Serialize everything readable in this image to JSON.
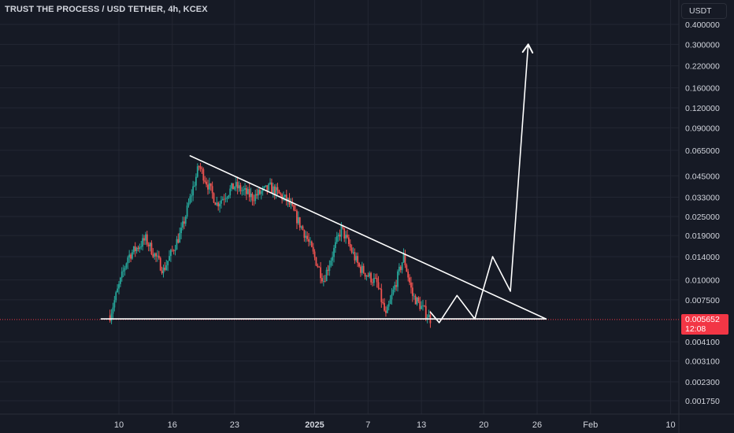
{
  "header": {
    "title": "TRUST THE PROCESS / USD TETHER, 4h, KCEX"
  },
  "toolbar": {
    "currency_label": "USDT"
  },
  "last_price": {
    "value": "0.005652",
    "countdown": "12:08"
  },
  "colors": {
    "background": "#161a25",
    "grid": "#232733",
    "axis_text": "#d1d4dc",
    "up_candle": "#26a69a",
    "down_candle": "#ef5350",
    "drawing": "#ffffff",
    "price_line": "#f23645"
  },
  "chart_data": {
    "type": "candlestick",
    "y_scale": "log",
    "y_ticks": [
      "0.400000",
      "0.300000",
      "0.220000",
      "0.160000",
      "0.120000",
      "0.090000",
      "0.065000",
      "0.045000",
      "0.033000",
      "0.025000",
      "0.019000",
      "0.014000",
      "0.010000",
      "0.007500",
      "0.004100",
      "0.003100",
      "0.002300",
      "0.001750"
    ],
    "x_ticks": [
      {
        "label": "10",
        "date": "2024-12-10"
      },
      {
        "label": "16",
        "date": "2024-12-16"
      },
      {
        "label": "23",
        "date": "2024-12-23"
      },
      {
        "label": "2025",
        "date": "2025-01-01",
        "bold": true
      },
      {
        "label": "7",
        "date": "2025-01-07"
      },
      {
        "label": "13",
        "date": "2025-01-13"
      },
      {
        "label": "20",
        "date": "2025-01-20"
      },
      {
        "label": "26",
        "date": "2025-01-26"
      },
      {
        "label": "Feb",
        "date": "2025-02-01"
      },
      {
        "label": "10",
        "date": "2025-02-10"
      }
    ],
    "price_trend": [
      {
        "date": "2024-12-09",
        "price": 0.006
      },
      {
        "date": "2024-12-11",
        "price": 0.014
      },
      {
        "date": "2024-12-13",
        "price": 0.018
      },
      {
        "date": "2024-12-15",
        "price": 0.0115
      },
      {
        "date": "2024-12-17",
        "price": 0.02
      },
      {
        "date": "2024-12-19",
        "price": 0.052
      },
      {
        "date": "2024-12-21",
        "price": 0.03
      },
      {
        "date": "2024-12-23",
        "price": 0.039
      },
      {
        "date": "2024-12-25",
        "price": 0.033
      },
      {
        "date": "2024-12-27",
        "price": 0.038
      },
      {
        "date": "2024-12-29",
        "price": 0.031
      },
      {
        "date": "2024-12-31",
        "price": 0.019
      },
      {
        "date": "2025-01-02",
        "price": 0.01
      },
      {
        "date": "2025-01-04",
        "price": 0.021
      },
      {
        "date": "2025-01-06",
        "price": 0.012
      },
      {
        "date": "2025-01-08",
        "price": 0.0095
      },
      {
        "date": "2025-01-09",
        "price": 0.0059
      },
      {
        "date": "2025-01-11",
        "price": 0.014
      },
      {
        "date": "2025-01-12",
        "price": 0.008
      },
      {
        "date": "2025-01-14",
        "price": 0.0057
      }
    ],
    "drawings": {
      "descending_trendline": [
        {
          "date": "2024-12-18",
          "price": 0.06
        },
        {
          "date": "2025-01-27",
          "price": 0.0057
        }
      ],
      "support_line": [
        {
          "date": "2024-12-08",
          "price": 0.0057
        },
        {
          "date": "2025-01-27",
          "price": 0.0057
        }
      ],
      "projected_path": [
        {
          "date": "2025-01-14",
          "price": 0.0063
        },
        {
          "date": "2025-01-15",
          "price": 0.0054
        },
        {
          "date": "2025-01-17",
          "price": 0.008
        },
        {
          "date": "2025-01-19",
          "price": 0.0057
        },
        {
          "date": "2025-01-21",
          "price": 0.014
        },
        {
          "date": "2025-01-23",
          "price": 0.0085
        },
        {
          "date": "2025-01-25",
          "price": 0.3
        }
      ]
    }
  }
}
